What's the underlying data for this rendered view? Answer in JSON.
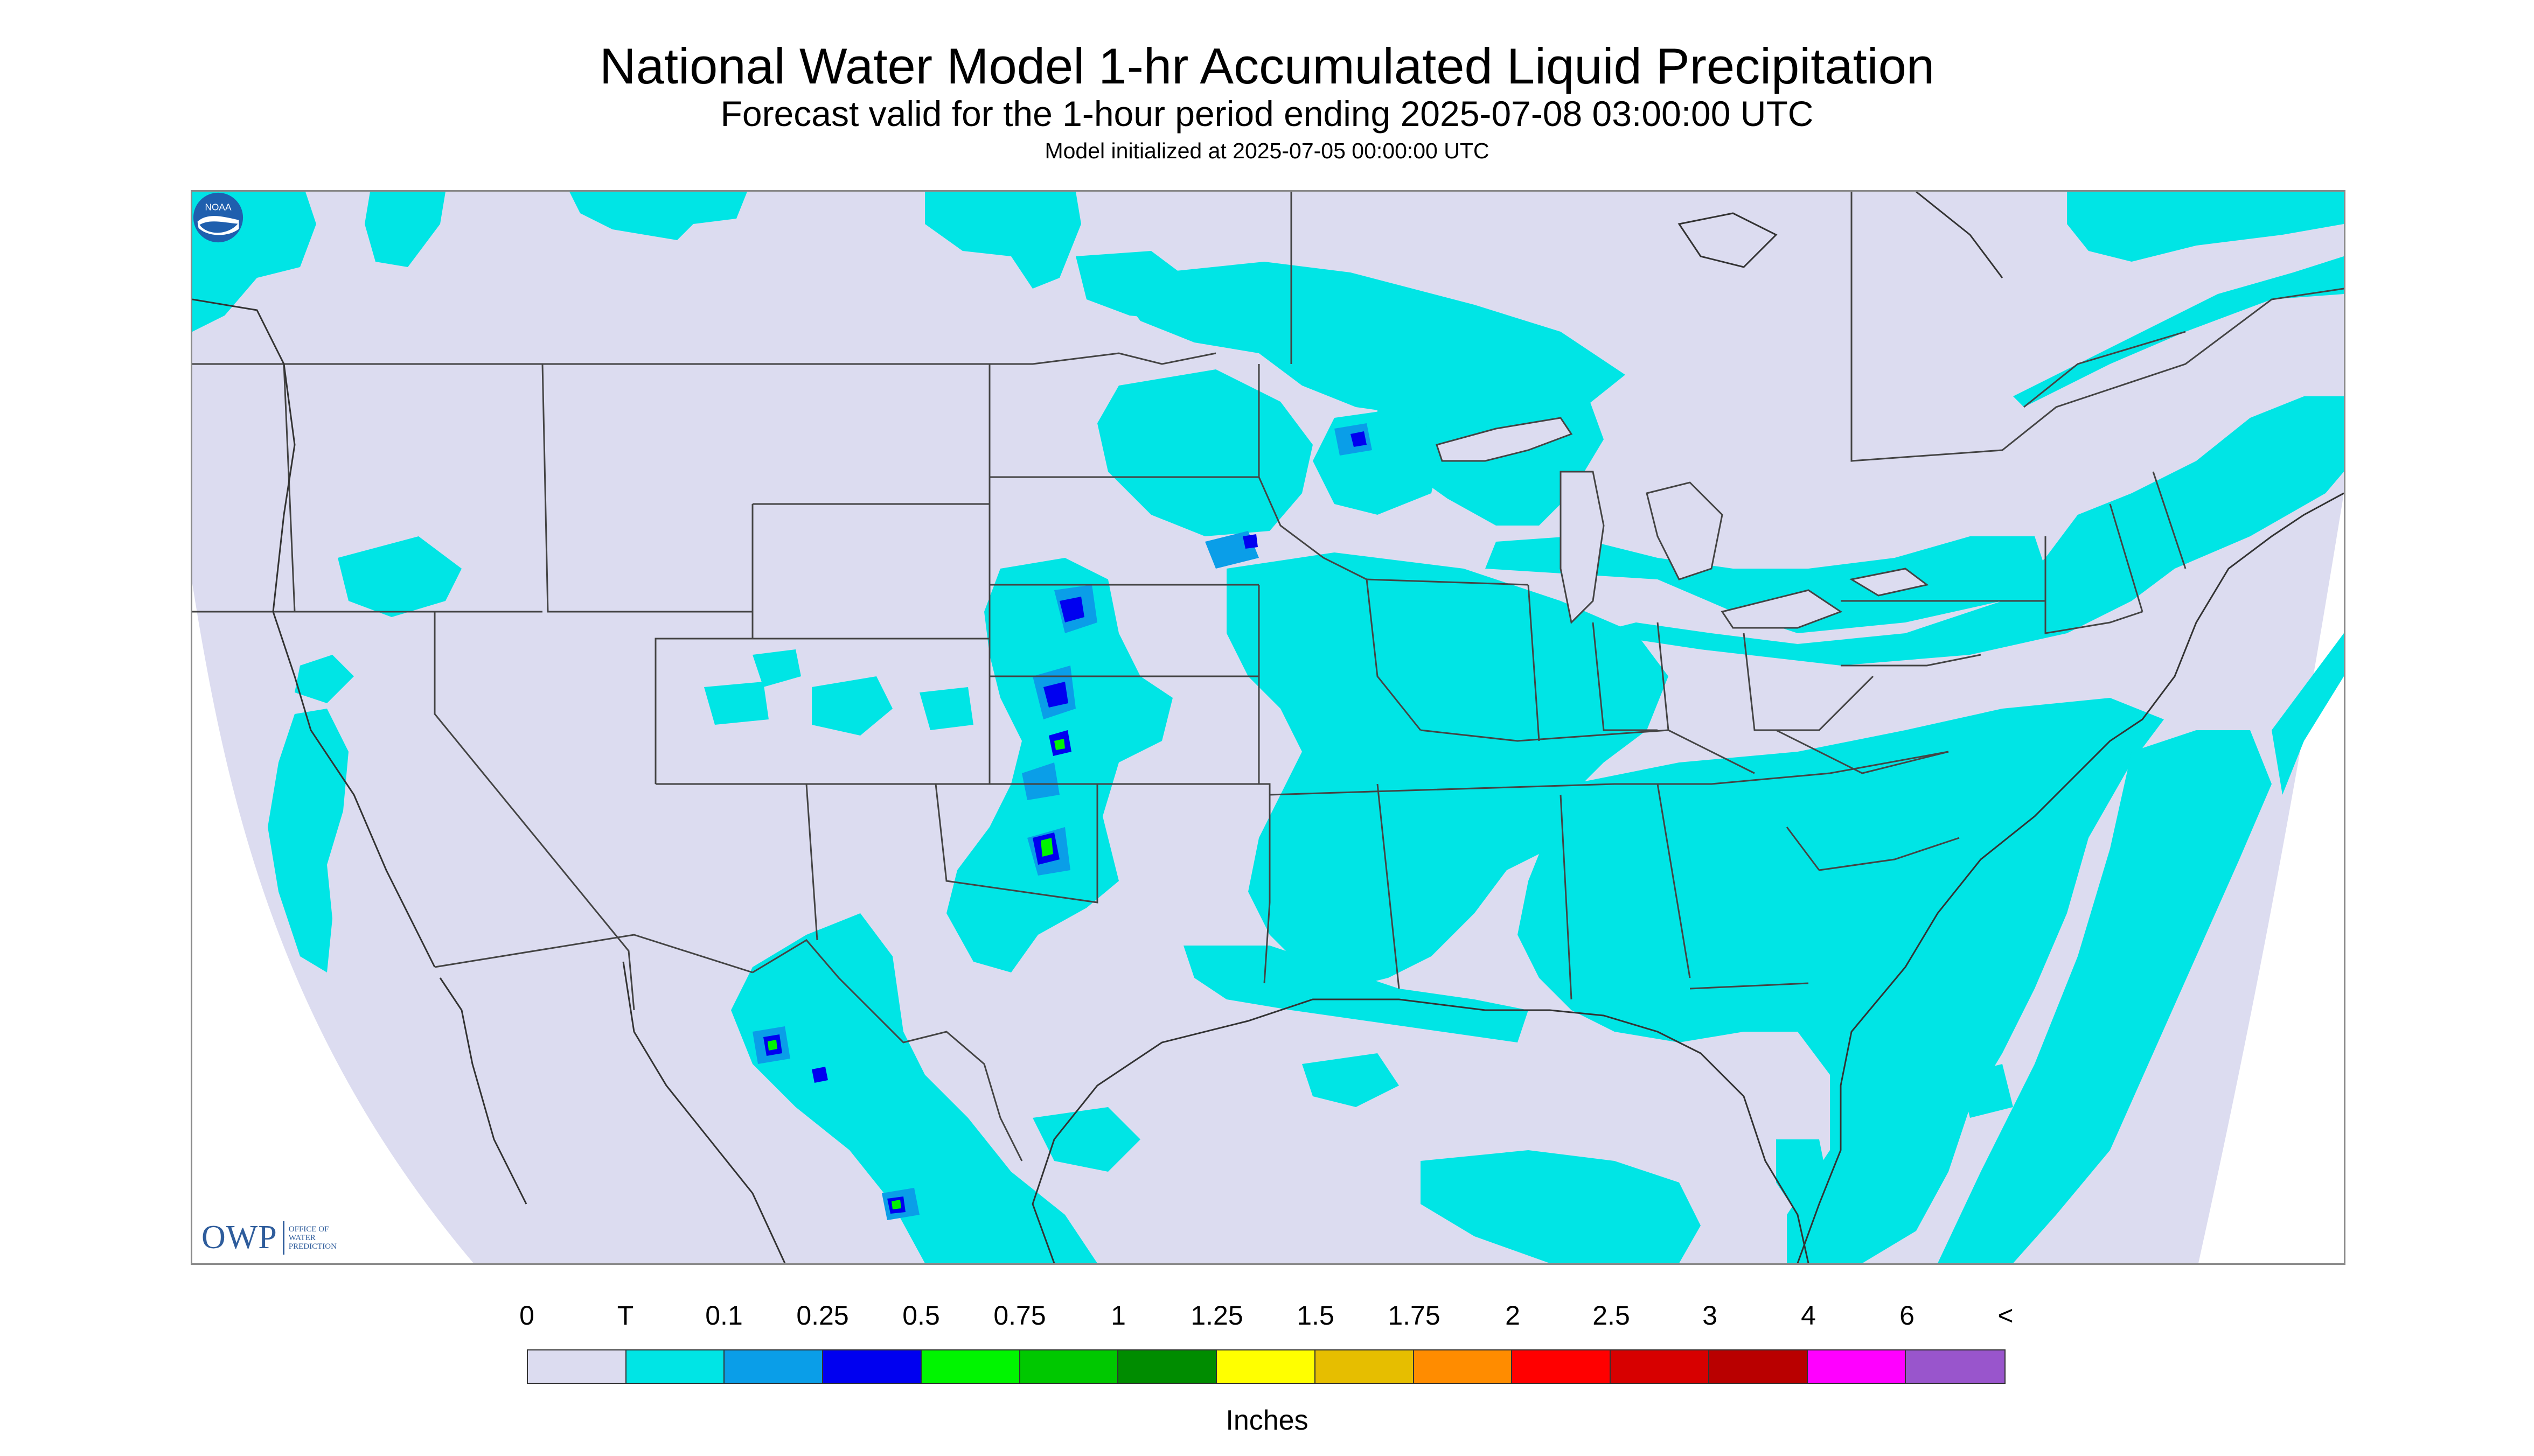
{
  "titles": {
    "main": "National Water Model 1-hr Accumulated Liquid Precipitation",
    "sub": "Forecast valid for the 1-hour period ending 2025-07-08 03:00:00 UTC",
    "init": "Model initialized at 2025-07-05 00:00:00 UTC"
  },
  "logos": {
    "owp_mark": "OWP",
    "owp_text": [
      "OFFICE OF",
      "WATER",
      "PREDICTION"
    ],
    "noaa_text": "NOAA"
  },
  "legend": {
    "labels": [
      "0",
      "T",
      "0.1",
      "0.25",
      "0.5",
      "0.75",
      "1",
      "1.25",
      "1.5",
      "1.75",
      "2",
      "2.5",
      "3",
      "4",
      "6",
      "<"
    ],
    "colors": [
      "#dcdcf0",
      "#00e5e5",
      "#0a9ee8",
      "#0000f0",
      "#00f500",
      "#00c800",
      "#008c00",
      "#ffff00",
      "#e6be00",
      "#ff8c00",
      "#ff0000",
      "#d70000",
      "#b90000",
      "#ff00ff",
      "#9955cc"
    ],
    "units": "Inches"
  },
  "map": {
    "background_color": "#dcdcf0",
    "outside_color": "#ffffff",
    "trace_color": "#00e5e5",
    "light_color": "#0a9ee8",
    "heavy_color": "#0000f0",
    "green_color": "#00f500",
    "boundary_color": "#444444"
  }
}
